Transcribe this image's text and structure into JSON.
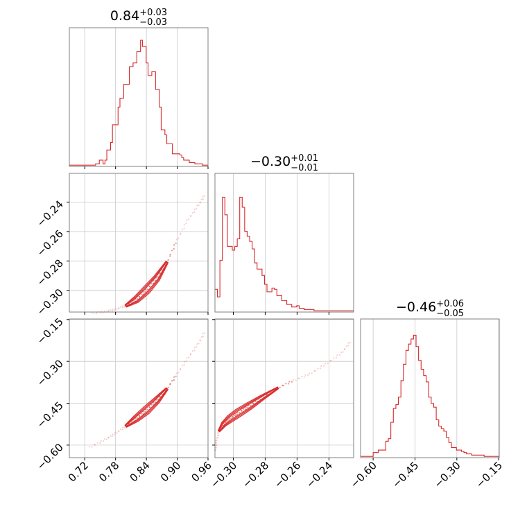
{
  "chart_data": {
    "type": "corner",
    "color": "#d62728",
    "parameters": [
      {
        "name": "",
        "title_value": "0.84",
        "title_plus": "+0.03",
        "title_minus": "−0.03",
        "range": [
          0.69,
          0.96
        ],
        "ticks": [
          0.72,
          0.78,
          0.84,
          0.9,
          0.96
        ],
        "tick_labels": [
          "0.72",
          "0.78",
          "0.84",
          "0.90",
          "0.96"
        ],
        "histogram": [
          0.01,
          0.01,
          0.01,
          0.01,
          0.01,
          0.01,
          0.01,
          0.01,
          0.01,
          0.01,
          0.01,
          0.01,
          0.01,
          0.01,
          0.02,
          0.02,
          0.05,
          0.05,
          0.02,
          0.05,
          0.13,
          0.13,
          0.19,
          0.33,
          0.33,
          0.33,
          0.47,
          0.54,
          0.54,
          0.65,
          0.65,
          0.65,
          0.79,
          0.79,
          0.82,
          0.82,
          0.91,
          0.91,
          1.0,
          0.95,
          0.95,
          0.82,
          0.72,
          0.72,
          0.75,
          0.75,
          0.61,
          0.61,
          0.47,
          0.29,
          0.29,
          0.25,
          0.18,
          0.18,
          0.18,
          0.1,
          0.1,
          0.1,
          0.1,
          0.09,
          0.07,
          0.05,
          0.05,
          0.05,
          0.03,
          0.03,
          0.03,
          0.02,
          0.02,
          0.02,
          0.02,
          0.01,
          0.01,
          0.01
        ]
      },
      {
        "name": "",
        "title_value": "−0.30",
        "title_plus": "+0.01",
        "title_minus": "−0.01",
        "range": [
          -0.3115,
          -0.2245
        ],
        "ticks": [
          -0.3,
          -0.28,
          -0.26,
          -0.24
        ],
        "tick_labels": [
          "−0.30",
          "−0.28",
          "−0.26",
          "−0.24"
        ],
        "histogram": [
          0.18,
          0.12,
          0.41,
          0.91,
          0.77,
          0.52,
          0.52,
          0.49,
          0.52,
          0.58,
          0.91,
          0.83,
          0.64,
          0.6,
          0.56,
          0.5,
          0.39,
          0.34,
          0.34,
          0.29,
          0.22,
          0.16,
          0.16,
          0.19,
          0.18,
          0.13,
          0.13,
          0.09,
          0.09,
          0.06,
          0.06,
          0.04,
          0.04,
          0.05,
          0.03,
          0.03,
          0.02,
          0.02,
          0.02,
          0.02,
          0.01,
          0.01,
          0.01,
          0.01,
          0.01,
          0.01,
          0.01,
          0.01,
          0.01,
          0.01,
          0.01,
          0.01,
          0.01,
          0.01,
          0.01,
          0.01
        ]
      },
      {
        "name": "",
        "title_value": "−0.46",
        "title_plus": "+0.06",
        "title_minus": "−0.05",
        "range": [
          -0.645,
          -0.148
        ],
        "ticks": [
          -0.6,
          -0.45,
          -0.3,
          -0.15
        ],
        "tick_labels": [
          "−0.60",
          "−0.45",
          "−0.30",
          "−0.15"
        ],
        "histogram": [
          0.01,
          0.01,
          0.01,
          0.01,
          0.01,
          0.04,
          0.04,
          0.06,
          0.06,
          0.06,
          0.13,
          0.15,
          0.28,
          0.39,
          0.42,
          0.48,
          0.61,
          0.74,
          0.85,
          0.9,
          0.94,
          0.97,
          0.88,
          0.77,
          0.7,
          0.65,
          0.6,
          0.48,
          0.43,
          0.4,
          0.3,
          0.25,
          0.23,
          0.21,
          0.16,
          0.12,
          0.08,
          0.08,
          0.06,
          0.06,
          0.05,
          0.04,
          0.03,
          0.03,
          0.02,
          0.02,
          0.02,
          0.02,
          0.02,
          0.01,
          0.01,
          0.01,
          0.01,
          0.01,
          0.01
        ]
      }
    ],
    "pairs": [
      {
        "x": 0,
        "y": 1,
        "curve": [
          [
            0.735,
            -0.3155
          ],
          [
            0.76,
            -0.3145
          ],
          [
            0.78,
            -0.3128
          ],
          [
            0.8,
            -0.3105
          ],
          [
            0.82,
            -0.3063
          ],
          [
            0.84,
            -0.2998
          ],
          [
            0.86,
            -0.2918
          ],
          [
            0.88,
            -0.2808
          ],
          [
            0.9,
            -0.2658
          ],
          [
            0.92,
            -0.2525
          ],
          [
            0.94,
            -0.2428
          ],
          [
            0.955,
            -0.2345
          ]
        ],
        "core": [
          0.8,
          0.88
        ],
        "y_range": [
          -0.3147,
          -0.2205
        ],
        "y_ticks": [
          -0.3,
          -0.28,
          -0.26,
          -0.24
        ],
        "y_tick_labels": [
          "−0.30",
          "−0.28",
          "−0.26",
          "−0.24"
        ]
      },
      {
        "x": 0,
        "y": 2,
        "curve": [
          [
            0.73,
            -0.608
          ],
          [
            0.76,
            -0.58
          ],
          [
            0.78,
            -0.558
          ],
          [
            0.8,
            -0.532
          ],
          [
            0.82,
            -0.505
          ],
          [
            0.84,
            -0.475
          ],
          [
            0.86,
            -0.44
          ],
          [
            0.88,
            -0.398
          ],
          [
            0.9,
            -0.345
          ],
          [
            0.92,
            -0.29
          ],
          [
            0.94,
            -0.24
          ],
          [
            0.955,
            -0.19
          ]
        ],
        "core": [
          0.79,
          0.88
        ],
        "y_range": [
          -0.645,
          -0.148
        ],
        "y_ticks": [
          -0.6,
          -0.45,
          -0.3,
          -0.15
        ],
        "y_tick_labels": [
          "−0.60",
          "−0.45",
          "−0.30",
          "−0.15"
        ]
      },
      {
        "x": 1,
        "y": 2,
        "curve": [
          [
            -0.3112,
            -0.62
          ],
          [
            -0.3105,
            -0.585
          ],
          [
            -0.309,
            -0.55
          ],
          [
            -0.306,
            -0.525
          ],
          [
            -0.302,
            -0.505
          ],
          [
            -0.297,
            -0.485
          ],
          [
            -0.29,
            -0.46
          ],
          [
            -0.282,
            -0.43
          ],
          [
            -0.272,
            -0.395
          ],
          [
            -0.262,
            -0.368
          ],
          [
            -0.252,
            -0.345
          ],
          [
            -0.242,
            -0.31
          ],
          [
            -0.232,
            -0.27
          ],
          [
            -0.226,
            -0.225
          ]
        ],
        "core": [
          -0.31,
          -0.27
        ],
        "y_range": [
          -0.645,
          -0.148
        ],
        "y_ticks": [
          -0.6,
          -0.45,
          -0.3,
          -0.15
        ],
        "y_tick_labels": [
          "−0.60",
          "−0.45",
          "−0.30",
          "−0.15"
        ]
      }
    ]
  }
}
